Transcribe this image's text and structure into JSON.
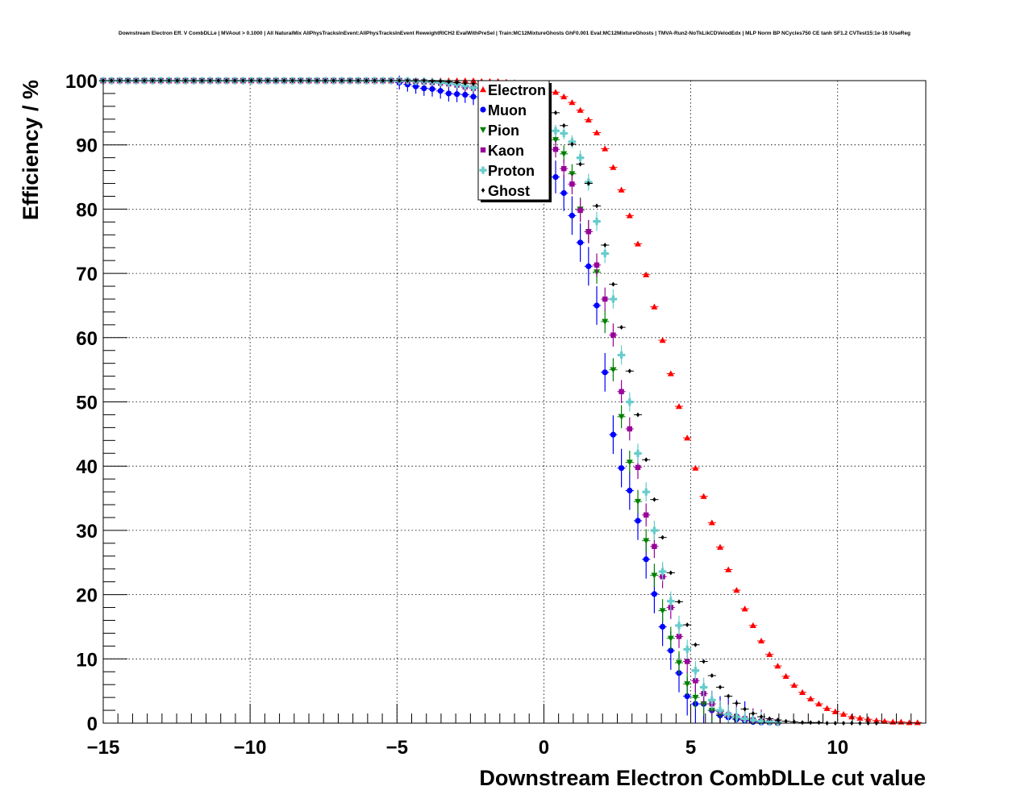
{
  "title": "Downstream Electron Eff. V CombDLLe | MVAout > 0.1000 | All NaturalMix AllPhysTracksInEvent:AllPhysTracksInEvent ReweightRICH2 EvalWithPreSel | Train:MC12MixtureGhosts GhF0.001 Eval:MC12MixtureGhosts | TMVA-Run2-NoTkLikCDVelodEdx | MLP Norm BP NCycles750 CE tanh SF1.2 CVTest15:1e-16 !UseReg",
  "chart_data": {
    "type": "scatter",
    "title": "Downstream Electron Eff. V CombDLLe | MVAout > 0.1000 | All NaturalMix AllPhysTracksInEvent:AllPhysTracksInEvent ReweightRICH2 EvalWithPreSel | Train:MC12MixtureGhosts GhF0.001 Eval:MC12MixtureGhosts | TMVA-Run2-NoTkLikCDVelodEdx | MLP Norm BP NCycles750 CE tanh SF1.2 CVTest15:1e-16 !UseReg",
    "xlabel": "Downstream Electron CombDLLe cut value",
    "ylabel": "Efficiency / %",
    "xlim": [
      -15,
      13
    ],
    "ylim": [
      0,
      100
    ],
    "x_ticks": [
      -15,
      -10,
      -5,
      0,
      5,
      10
    ],
    "x_tick_labels": [
      "−15",
      "−10",
      "−5",
      "0",
      "5",
      "10"
    ],
    "y_ticks": [
      0,
      10,
      20,
      30,
      40,
      50,
      60,
      70,
      80,
      90,
      100
    ],
    "y_tick_labels": [
      "0",
      "10",
      "20",
      "30",
      "40",
      "50",
      "60",
      "70",
      "80",
      "90",
      "100"
    ],
    "grid": true,
    "legend_position": "top-center",
    "series": [
      {
        "name": "Electron",
        "color": "#ff0000",
        "marker": "triangle-up",
        "x": [
          -15.0,
          -14.72,
          -14.44,
          -14.16,
          -13.88,
          -13.6,
          -13.32,
          -13.04,
          -12.76,
          -12.48,
          -12.2,
          -11.92,
          -11.64,
          -11.36,
          -11.08,
          -10.8,
          -10.52,
          -10.24,
          -9.96,
          -9.68,
          -9.4,
          -9.12,
          -8.84,
          -8.56,
          -8.28,
          -8.0,
          -7.72,
          -7.44,
          -7.16,
          -6.88,
          -6.6,
          -6.32,
          -6.04,
          -5.76,
          -5.48,
          -5.2,
          -4.92,
          -4.64,
          -4.36,
          -4.08,
          -3.8,
          -3.52,
          -3.24,
          -2.96,
          -2.68,
          -2.4,
          -2.12,
          -1.84,
          -1.56,
          -1.28,
          -1.0,
          -0.72,
          -0.44,
          -0.16,
          0.12,
          0.4,
          0.68,
          0.96,
          1.24,
          1.52,
          1.8,
          2.08,
          2.36,
          2.64,
          2.92,
          3.2,
          3.48,
          3.76,
          4.04,
          4.32,
          4.6,
          4.88,
          5.16,
          5.44,
          5.72,
          6.0,
          6.28,
          6.56,
          6.84,
          7.12,
          7.4,
          7.68,
          7.96,
          8.24,
          8.52,
          8.8,
          9.08,
          9.36,
          9.64,
          9.92,
          10.2,
          10.48,
          10.76,
          11.04,
          11.32,
          11.6,
          11.88,
          12.16,
          12.44,
          12.72
        ],
        "y": [
          100.0,
          100.0,
          100.0,
          100.0,
          100.0,
          100.0,
          100.0,
          100.0,
          100.0,
          100.0,
          100.0,
          100.0,
          100.0,
          100.0,
          100.0,
          100.0,
          100.0,
          100.0,
          100.0,
          100.0,
          100.0,
          100.0,
          100.0,
          100.0,
          100.0,
          100.0,
          100.0,
          100.0,
          100.0,
          100.0,
          100.0,
          100.0,
          100.0,
          100.0,
          100.0,
          100.0,
          100.0,
          100.0,
          100.0,
          100.0,
          100.0,
          100.0,
          100.0,
          100.0,
          100.0,
          100.0,
          99.9,
          99.9,
          99.9,
          99.8,
          99.7,
          99.6,
          99.4,
          99.1,
          98.7,
          98.2,
          97.5,
          96.6,
          95.4,
          93.9,
          91.9,
          89.4,
          86.5,
          83.0,
          79.0,
          74.6,
          69.8,
          64.8,
          59.6,
          54.4,
          49.3,
          44.4,
          39.7,
          35.3,
          31.2,
          27.4,
          23.9,
          20.7,
          17.8,
          15.2,
          12.8,
          10.7,
          8.9,
          7.3,
          5.9,
          4.8,
          3.8,
          3.0,
          2.3,
          1.8,
          1.4,
          1.0,
          0.8,
          0.6,
          0.4,
          0.3,
          0.2,
          0.2,
          0.1,
          0.1
        ],
        "yerr": 0.25
      },
      {
        "name": "Muon",
        "color": "#0000ff",
        "marker": "circle",
        "x": [
          -15.0,
          -14.72,
          -14.44,
          -14.16,
          -13.88,
          -13.6,
          -13.32,
          -13.04,
          -12.76,
          -12.48,
          -12.2,
          -11.92,
          -11.64,
          -11.36,
          -11.08,
          -10.8,
          -10.52,
          -10.24,
          -9.96,
          -9.68,
          -9.4,
          -9.12,
          -8.84,
          -8.56,
          -8.28,
          -8.0,
          -7.72,
          -7.44,
          -7.16,
          -6.88,
          -6.6,
          -6.32,
          -6.04,
          -5.76,
          -5.48,
          -5.2,
          -4.92,
          -4.64,
          -4.36,
          -4.08,
          -3.8,
          -3.52,
          -3.24,
          -2.96,
          -2.68,
          -2.4,
          -2.12,
          -1.84,
          -1.56,
          -1.28,
          -1.0,
          -0.72,
          -0.44,
          -0.16,
          0.12,
          0.4,
          0.68,
          0.96,
          1.24,
          1.52,
          1.8,
          2.08,
          2.36,
          2.64,
          2.92,
          3.2,
          3.48,
          3.76,
          4.04,
          4.32,
          4.6,
          4.88,
          5.16,
          5.44,
          5.72,
          6.0,
          6.28,
          6.56,
          6.84,
          7.12,
          7.4,
          7.68,
          7.96
        ],
        "y": [
          100.0,
          100.0,
          100.0,
          100.0,
          100.0,
          100.0,
          100.0,
          100.0,
          100.0,
          100.0,
          100.0,
          100.0,
          100.0,
          100.0,
          100.0,
          100.0,
          100.0,
          100.0,
          100.0,
          100.0,
          100.0,
          100.0,
          100.0,
          100.0,
          100.0,
          100.0,
          100.0,
          100.0,
          100.0,
          100.0,
          100.0,
          100.0,
          100.0,
          100.0,
          100.0,
          100.0,
          99.7,
          99.4,
          99.1,
          98.8,
          98.7,
          98.4,
          98.0,
          97.9,
          97.8,
          97.5,
          97.3,
          96.5,
          96.0,
          95.4,
          94.5,
          93.5,
          92.8,
          91.5,
          89.0,
          85.0,
          82.5,
          79.0,
          74.8,
          71.1,
          65.0,
          54.6,
          44.9,
          39.7,
          36.2,
          31.5,
          25.5,
          20.1,
          15.0,
          11.3,
          7.8,
          4.2,
          3.0,
          3.0,
          2.0,
          1.2,
          0.9,
          0.6,
          0.4,
          0.2,
          0.1,
          0.1,
          0.0
        ],
        "yerr": 3.0
      },
      {
        "name": "Pion",
        "color": "#008000",
        "marker": "triangle-down",
        "x": [
          -15.0,
          -14.72,
          -14.44,
          -14.16,
          -13.88,
          -13.6,
          -13.32,
          -13.04,
          -12.76,
          -12.48,
          -12.2,
          -11.92,
          -11.64,
          -11.36,
          -11.08,
          -10.8,
          -10.52,
          -10.24,
          -9.96,
          -9.68,
          -9.4,
          -9.12,
          -8.84,
          -8.56,
          -8.28,
          -8.0,
          -7.72,
          -7.44,
          -7.16,
          -6.88,
          -6.6,
          -6.32,
          -6.04,
          -5.76,
          -5.48,
          -5.2,
          -4.92,
          -4.64,
          -4.36,
          -4.08,
          -3.8,
          -3.52,
          -3.24,
          -2.96,
          -2.68,
          -2.4,
          -2.12,
          -1.84,
          -1.56,
          -1.28,
          -1.0,
          -0.72,
          -0.44,
          -0.16,
          0.12,
          0.4,
          0.68,
          0.96,
          1.24,
          1.52,
          1.8,
          2.08,
          2.36,
          2.64,
          2.92,
          3.2,
          3.48,
          3.76,
          4.04,
          4.32,
          4.6,
          4.88,
          5.16,
          5.44,
          5.72,
          6.0,
          6.28,
          6.56,
          6.84,
          7.12,
          7.4,
          7.68,
          7.96
        ],
        "y": [
          100.0,
          100.0,
          100.0,
          100.0,
          100.0,
          100.0,
          100.0,
          100.0,
          100.0,
          100.0,
          100.0,
          100.0,
          100.0,
          100.0,
          100.0,
          100.0,
          100.0,
          100.0,
          100.0,
          100.0,
          100.0,
          100.0,
          100.0,
          100.0,
          100.0,
          100.0,
          100.0,
          100.0,
          100.0,
          100.0,
          100.0,
          100.0,
          100.0,
          100.0,
          100.0,
          100.0,
          100.0,
          99.9,
          99.9,
          99.8,
          99.7,
          99.6,
          99.5,
          99.3,
          99.0,
          98.8,
          98.5,
          98.0,
          97.4,
          96.6,
          95.8,
          94.8,
          93.6,
          92.8,
          91.8,
          90.8,
          88.6,
          85.5,
          80.0,
          76.5,
          70.2,
          62.5,
          55.0,
          47.7,
          40.6,
          34.5,
          28.4,
          23.0,
          17.5,
          13.2,
          9.4,
          6.1,
          4.0,
          3.0,
          2.0,
          1.4,
          1.0,
          0.7,
          0.5,
          0.3,
          0.2,
          0.1,
          0.1
        ],
        "yerr": 1.8
      },
      {
        "name": "Kaon",
        "color": "#990099",
        "marker": "square",
        "x": [
          -15.0,
          -14.72,
          -14.44,
          -14.16,
          -13.88,
          -13.6,
          -13.32,
          -13.04,
          -12.76,
          -12.48,
          -12.2,
          -11.92,
          -11.64,
          -11.36,
          -11.08,
          -10.8,
          -10.52,
          -10.24,
          -9.96,
          -9.68,
          -9.4,
          -9.12,
          -8.84,
          -8.56,
          -8.28,
          -8.0,
          -7.72,
          -7.44,
          -7.16,
          -6.88,
          -6.6,
          -6.32,
          -6.04,
          -5.76,
          -5.48,
          -5.2,
          -4.92,
          -4.64,
          -4.36,
          -4.08,
          -3.8,
          -3.52,
          -3.24,
          -2.96,
          -2.68,
          -2.4,
          -2.12,
          -1.84,
          -1.56,
          -1.28,
          -1.0,
          -0.72,
          -0.44,
          -0.16,
          0.12,
          0.4,
          0.68,
          0.96,
          1.24,
          1.52,
          1.8,
          2.08,
          2.36,
          2.64,
          2.92,
          3.2,
          3.48,
          3.76,
          4.04,
          4.32,
          4.6,
          4.88,
          5.16,
          5.44,
          5.72,
          6.0,
          6.28,
          6.56,
          6.84,
          7.12,
          7.4,
          7.68,
          7.96
        ],
        "y": [
          100.0,
          100.0,
          100.0,
          100.0,
          100.0,
          100.0,
          100.0,
          100.0,
          100.0,
          100.0,
          100.0,
          100.0,
          100.0,
          100.0,
          100.0,
          100.0,
          100.0,
          100.0,
          100.0,
          100.0,
          100.0,
          100.0,
          100.0,
          100.0,
          100.0,
          100.0,
          100.0,
          100.0,
          100.0,
          100.0,
          100.0,
          100.0,
          100.0,
          100.0,
          100.0,
          100.0,
          100.0,
          99.9,
          99.9,
          99.8,
          99.7,
          99.6,
          99.5,
          99.3,
          99.0,
          98.8,
          98.5,
          98.0,
          97.4,
          96.6,
          95.8,
          94.8,
          93.6,
          92.2,
          90.8,
          89.3,
          86.3,
          83.9,
          79.8,
          76.5,
          71.3,
          66.0,
          60.4,
          51.6,
          45.8,
          39.8,
          32.4,
          27.5,
          22.8,
          18.0,
          13.5,
          9.6,
          6.6,
          4.6,
          3.0,
          1.8,
          1.3,
          1.0,
          0.7,
          0.5,
          0.3,
          0.2,
          0.1
        ],
        "yerr": 1.8
      },
      {
        "name": "Proton",
        "color": "#66cccc",
        "marker": "cross",
        "x": [
          -15.0,
          -14.72,
          -14.44,
          -14.16,
          -13.88,
          -13.6,
          -13.32,
          -13.04,
          -12.76,
          -12.48,
          -12.2,
          -11.92,
          -11.64,
          -11.36,
          -11.08,
          -10.8,
          -10.52,
          -10.24,
          -9.96,
          -9.68,
          -9.4,
          -9.12,
          -8.84,
          -8.56,
          -8.28,
          -8.0,
          -7.72,
          -7.44,
          -7.16,
          -6.88,
          -6.6,
          -6.32,
          -6.04,
          -5.76,
          -5.48,
          -5.2,
          -4.92,
          -4.64,
          -4.36,
          -4.08,
          -3.8,
          -3.52,
          -3.24,
          -2.96,
          -2.68,
          -2.4,
          -2.12,
          -1.84,
          -1.56,
          -1.28,
          -1.0,
          -0.72,
          -0.44,
          -0.16,
          0.12,
          0.4,
          0.68,
          0.96,
          1.24,
          1.52,
          1.8,
          2.08,
          2.36,
          2.64,
          2.92,
          3.2,
          3.48,
          3.76,
          4.04,
          4.32,
          4.6,
          4.88,
          5.16,
          5.44,
          5.72,
          6.0,
          6.28,
          6.56,
          6.84,
          7.12,
          7.4,
          7.68,
          7.96
        ],
        "y": [
          100.0,
          100.0,
          100.0,
          100.0,
          100.0,
          100.0,
          100.0,
          100.0,
          100.0,
          100.0,
          100.0,
          100.0,
          100.0,
          100.0,
          100.0,
          100.0,
          100.0,
          100.0,
          100.0,
          100.0,
          100.0,
          100.0,
          100.0,
          100.0,
          100.0,
          100.0,
          100.0,
          100.0,
          100.0,
          100.0,
          100.0,
          100.0,
          100.0,
          100.0,
          100.0,
          100.0,
          100.0,
          100.0,
          99.9,
          99.9,
          99.8,
          99.7,
          99.6,
          99.4,
          99.2,
          98.9,
          98.6,
          98.2,
          97.6,
          96.9,
          96.0,
          95.0,
          94.0,
          93.3,
          92.5,
          92.2,
          91.8,
          90.5,
          88.0,
          84.2,
          78.1,
          73.1,
          66.0,
          57.3,
          50.0,
          42.0,
          36.0,
          30.0,
          23.6,
          19.0,
          15.2,
          11.5,
          8.2,
          5.6,
          3.6,
          2.0,
          1.4,
          1.0,
          0.7,
          0.5,
          0.3,
          0.2,
          0.1
        ],
        "yerr": 1.5
      },
      {
        "name": "Ghost",
        "color": "#000000",
        "marker": "diamond",
        "x": [
          -15.0,
          -14.72,
          -14.44,
          -14.16,
          -13.88,
          -13.6,
          -13.32,
          -13.04,
          -12.76,
          -12.48,
          -12.2,
          -11.92,
          -11.64,
          -11.36,
          -11.08,
          -10.8,
          -10.52,
          -10.24,
          -9.96,
          -9.68,
          -9.4,
          -9.12,
          -8.84,
          -8.56,
          -8.28,
          -8.0,
          -7.72,
          -7.44,
          -7.16,
          -6.88,
          -6.6,
          -6.32,
          -6.04,
          -5.76,
          -5.48,
          -5.2,
          -4.92,
          -4.64,
          -4.36,
          -4.08,
          -3.8,
          -3.52,
          -3.24,
          -2.96,
          -2.68,
          -2.4,
          -2.12,
          -1.84,
          -1.56,
          -1.28,
          -1.0,
          -0.72,
          -0.44,
          -0.16,
          0.12,
          0.4,
          0.68,
          0.96,
          1.24,
          1.52,
          1.8,
          2.08,
          2.36,
          2.64,
          2.92,
          3.2,
          3.48,
          3.76,
          4.04,
          4.32,
          4.6,
          4.88,
          5.16,
          5.44,
          5.72,
          6.0,
          6.28,
          6.56,
          6.84,
          7.12,
          7.4,
          7.68,
          7.96,
          8.24,
          8.52,
          8.8,
          9.08,
          9.36,
          9.64,
          9.92,
          10.2,
          10.48,
          10.76,
          11.04,
          11.32
        ],
        "y": [
          100.0,
          100.0,
          100.0,
          100.0,
          100.0,
          100.0,
          100.0,
          100.0,
          100.0,
          100.0,
          100.0,
          100.0,
          100.0,
          100.0,
          100.0,
          100.0,
          100.0,
          100.0,
          100.0,
          100.0,
          100.0,
          100.0,
          100.0,
          100.0,
          100.0,
          100.0,
          100.0,
          100.0,
          100.0,
          100.0,
          100.0,
          100.0,
          100.0,
          100.0,
          100.0,
          100.0,
          100.0,
          100.0,
          100.0,
          100.0,
          99.9,
          99.9,
          99.8,
          99.7,
          99.6,
          99.5,
          99.3,
          99.0,
          98.7,
          98.3,
          97.8,
          97.1,
          96.9,
          96.3,
          95.8,
          95.0,
          93.0,
          90.1,
          87.0,
          84.0,
          80.5,
          74.4,
          68.3,
          61.6,
          54.8,
          48.0,
          41.0,
          34.8,
          28.9,
          23.4,
          18.9,
          15.3,
          12.2,
          9.6,
          7.4,
          5.6,
          4.2,
          3.1,
          2.2,
          1.5,
          1.0,
          0.7,
          0.5,
          0.3,
          0.2,
          0.1,
          0.1,
          0.1,
          0.0,
          0.0,
          0.0,
          0.0,
          0.0,
          0.0,
          0.0
        ],
        "yerr": 0.0
      }
    ]
  }
}
